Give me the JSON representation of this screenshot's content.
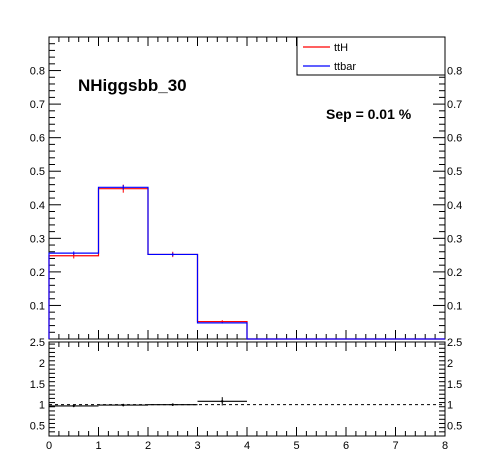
{
  "chart_data": [
    {
      "type": "step",
      "annotations": {
        "title": "NHiggsbb_30",
        "separation": "Sep = 0.01 %"
      },
      "bin_edges": [
        0,
        1,
        2,
        3,
        4,
        5,
        6,
        7,
        8
      ],
      "xlim": [
        0,
        8
      ],
      "ylim": [
        0,
        0.9
      ],
      "yticks": [
        "0.1",
        "0.2",
        "0.3",
        "0.4",
        "0.5",
        "0.6",
        "0.7",
        "0.8"
      ],
      "ytick_values": [
        0.1,
        0.2,
        0.3,
        0.4,
        0.5,
        0.6,
        0.7,
        0.8
      ],
      "legend": {
        "placement": "top-right"
      },
      "series": [
        {
          "name": "ttH",
          "color": "#ff0000",
          "values": [
            0.248,
            0.448,
            0.252,
            0.052,
            0,
            0,
            0,
            0
          ],
          "errors": [
            0.008,
            0.012,
            0.008,
            0.004,
            0,
            0,
            0,
            0
          ]
        },
        {
          "name": "ttbar",
          "color": "#0000ff",
          "values": [
            0.256,
            0.452,
            0.252,
            0.048,
            0,
            0,
            0,
            0
          ],
          "errors": [
            0.005,
            0.007,
            0.005,
            0.002,
            0,
            0,
            0,
            0
          ]
        }
      ]
    },
    {
      "type": "scatter",
      "xlim": [
        0,
        8
      ],
      "ylim": [
        0.25,
        2.5
      ],
      "xticks": [
        "0",
        "1",
        "2",
        "3",
        "4",
        "5",
        "6",
        "7",
        "8"
      ],
      "xtick_values": [
        0,
        1,
        2,
        3,
        4,
        5,
        6,
        7,
        8
      ],
      "yticks": [
        "0.5",
        "1",
        "1.5",
        "2",
        "2.5"
      ],
      "ytick_values": [
        0.5,
        1,
        1.5,
        2,
        2.5
      ],
      "reference_line": 1,
      "points": [
        {
          "x": 0.5,
          "y": 0.97,
          "xerr": 0.5,
          "yerr": 0.03
        },
        {
          "x": 1.5,
          "y": 0.99,
          "xerr": 0.5,
          "yerr": 0.03
        },
        {
          "x": 2.5,
          "y": 1.0,
          "xerr": 0.5,
          "yerr": 0.03
        },
        {
          "x": 3.5,
          "y": 1.08,
          "xerr": 0.5,
          "yerr": 0.1
        }
      ]
    }
  ]
}
